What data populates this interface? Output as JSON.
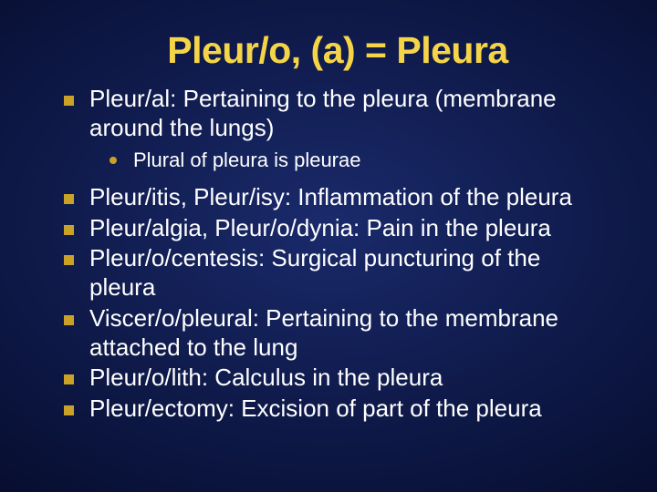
{
  "slide": {
    "title": "Pleur/o, (a) = Pleura",
    "title_color": "#f5d547",
    "background": {
      "type": "radial-gradient",
      "colors": [
        "#1a2a6b",
        "#0f1a4a",
        "#060d2e",
        "#020518"
      ]
    },
    "bullet_color": "#c9a227",
    "text_color": "#ffffff",
    "body_fontsize": 26,
    "title_fontsize": 41,
    "sub_fontsize": 22,
    "items": [
      {
        "text": "Pleur/al: Pertaining to the pleura (membrane around the lungs)",
        "sub": [
          "Plural of pleura is pleurae"
        ]
      },
      {
        "text": "Pleur/itis, Pleur/isy: Inflammation of the pleura"
      },
      {
        "text": "Pleur/algia, Pleur/o/dynia: Pain in the pleura"
      },
      {
        "text": "Pleur/o/centesis: Surgical puncturing of the pleura"
      },
      {
        "text": "Viscer/o/pleural: Pertaining to the membrane attached to the lung"
      },
      {
        "text": "Pleur/o/lith: Calculus in the pleura"
      },
      {
        "text": "Pleur/ectomy: Excision of part of the pleura"
      }
    ]
  }
}
